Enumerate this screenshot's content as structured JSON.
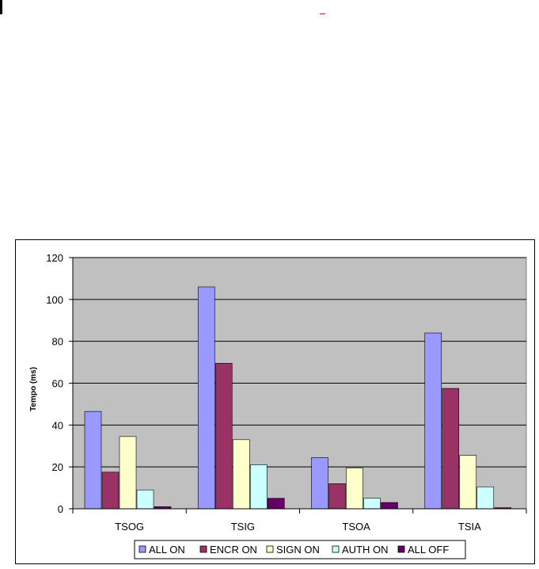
{
  "chart_data": {
    "type": "bar",
    "categories": [
      "TSOG",
      "TSIG",
      "TSOA",
      "TSIA"
    ],
    "series": [
      {
        "name": "ALL ON",
        "color": "#9999ff",
        "values": [
          46.5,
          106,
          24.5,
          84
        ]
      },
      {
        "name": "ENCR ON",
        "color": "#993366",
        "values": [
          17.5,
          69.5,
          12,
          57.5
        ]
      },
      {
        "name": "SIGN ON",
        "color": "#ffffcc",
        "values": [
          34.5,
          33,
          19.5,
          25.5
        ]
      },
      {
        "name": "AUTH ON",
        "color": "#ccffff",
        "values": [
          9,
          21,
          5,
          10.5
        ]
      },
      {
        "name": "ALL OFF",
        "color": "#660066",
        "values": [
          1,
          5,
          3,
          0.5
        ]
      }
    ],
    "title": "",
    "xlabel": "",
    "ylabel": "Tempo (ms)",
    "ylim": [
      0,
      120
    ],
    "yticks": [
      0,
      20,
      40,
      60,
      80,
      100,
      120
    ],
    "grid": true,
    "legend_position": "bottom",
    "plot_background": "#c0c0c0"
  }
}
